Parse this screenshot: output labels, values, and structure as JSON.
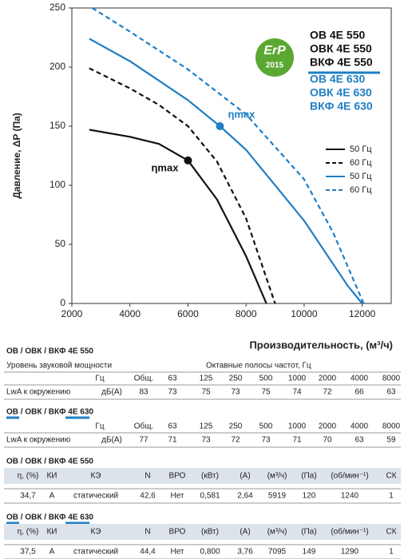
{
  "chart_data": {
    "type": "line",
    "ylabel": "Давление, ΔP (Па)",
    "xlabel": "Производительность, (м³/ч)",
    "xlim": [
      2000,
      13000
    ],
    "ylim": [
      0,
      250
    ],
    "xticks": [
      2000,
      4000,
      6000,
      8000,
      10000,
      12000
    ],
    "yticks": [
      0,
      50,
      100,
      150,
      200,
      250
    ],
    "grid": false,
    "legend": "right",
    "series": [
      {
        "name": "50 Гц",
        "color": "#111111",
        "dash": false,
        "x": [
          2600,
          4000,
          5000,
          6000,
          7000,
          8000,
          8700
        ],
        "values": [
          147,
          141,
          135,
          121,
          88,
          40,
          0
        ]
      },
      {
        "name": "60 Гц",
        "color": "#111111",
        "dash": true,
        "x": [
          2600,
          4000,
          5000,
          6000,
          7000,
          8000,
          9000
        ],
        "values": [
          199,
          182,
          168,
          150,
          120,
          72,
          0
        ]
      },
      {
        "name": "50 Гц",
        "color": "#1f7fc4",
        "dash": false,
        "x": [
          2600,
          4000,
          6000,
          7100,
          8000,
          10000,
          11500,
          12000
        ],
        "values": [
          224,
          205,
          172,
          150,
          130,
          70,
          15,
          0
        ]
      },
      {
        "name": "60 Гц",
        "color": "#1f7fc4",
        "dash": true,
        "x": [
          2700,
          4000,
          6000,
          8000,
          10000,
          11000,
          12050
        ],
        "values": [
          250,
          230,
          198,
          160,
          105,
          60,
          0
        ]
      }
    ],
    "annotations": [
      {
        "text": "ηmax",
        "x": 6000,
        "y": 121,
        "color": "#111111"
      },
      {
        "text": "ηmax",
        "x": 7100,
        "y": 150,
        "color": "#1f7fc4"
      }
    ],
    "badge": {
      "text": "ErP",
      "year": "2015"
    },
    "models": [
      {
        "text": "ОВ 4Е 550",
        "color": "#111111"
      },
      {
        "text": "ОВК 4Е 550",
        "color": "#111111"
      },
      {
        "text": "ВКФ 4Е 550",
        "color": "#111111"
      },
      {
        "text": "ОВ 4Е 630",
        "color": "#1f7fc4"
      },
      {
        "text": "ОВК 4Е 630",
        "color": "#1f7fc4"
      },
      {
        "text": "ВКФ 4Е 630",
        "color": "#1f7fc4"
      }
    ]
  },
  "tables": [
    {
      "title": "ОВ / ОВК / ВКФ 4Е 550",
      "caption": [
        "Уровень звуковой мощности",
        "Октавные полосы частот, Гц"
      ],
      "header": [
        "Гц",
        "Общ.",
        "63",
        "125",
        "250",
        "500",
        "1000",
        "2000",
        "4000",
        "8000"
      ],
      "row": [
        "LwA к окружению",
        "дБ(А)",
        "83",
        "73",
        "75",
        "73",
        "75",
        "74",
        "72",
        "66",
        "63"
      ]
    },
    {
      "title": "ОВ / ОВК / ВКФ 4Е 630",
      "header": [
        "Гц",
        "Общ.",
        "63",
        "125",
        "250",
        "500",
        "1000",
        "2000",
        "4000",
        "8000"
      ],
      "row": [
        "LwA к окружению",
        "дБ(А)",
        "77",
        "71",
        "73",
        "72",
        "73",
        "71",
        "70",
        "63",
        "59"
      ]
    },
    {
      "title": "ОВ / ОВК / ВКФ 4Е 550",
      "header": [
        "η, (%)",
        "КИ",
        "КЭ",
        "N",
        "ВРО",
        "(кВт)",
        "(А)",
        "(м³/ч)",
        "(Па)",
        "(об/мин⁻¹)",
        "СК"
      ],
      "row": [
        "34,7",
        "А",
        "статический",
        "42,6",
        "Нет",
        "0,581",
        "2,64",
        "5919",
        "120",
        "1240",
        "1"
      ]
    },
    {
      "title": "ОВ / ОВК / ВКФ 4Е 630",
      "header": [
        "η, (%)",
        "КИ",
        "КЭ",
        "N",
        "ВРО",
        "(кВт)",
        "(А)",
        "(м³/ч)",
        "(Па)",
        "(об/мин⁻¹)",
        "СК"
      ],
      "row": [
        "37,5",
        "А",
        "статический",
        "44,4",
        "Нет",
        "0,800",
        "3,76",
        "7095",
        "149",
        "1290",
        "1"
      ]
    }
  ]
}
